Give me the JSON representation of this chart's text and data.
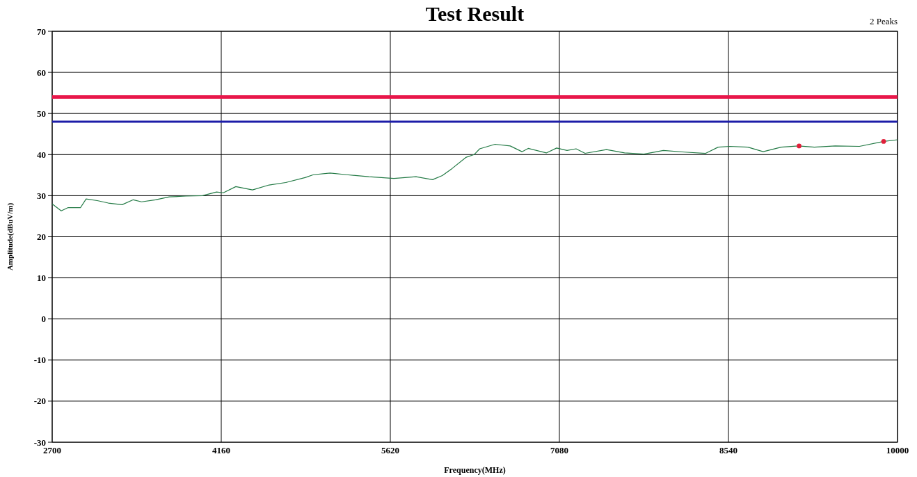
{
  "chart_data": {
    "type": "line",
    "title": "Test Result",
    "xlabel": "Frequency(MHz)",
    "ylabel": "Amplitude(dBuV/m)",
    "annotations": [
      "2 Peaks"
    ],
    "xlim": [
      2700,
      10000
    ],
    "xticks": [
      2700,
      4160,
      5620,
      7080,
      8540,
      10000
    ],
    "ylim": [
      -30,
      70
    ],
    "yticks": [
      -30,
      -20,
      -10,
      0,
      10,
      20,
      30,
      40,
      50,
      60,
      70
    ],
    "grid": true,
    "series": [
      {
        "color": "#237a45",
        "marker": "none",
        "x": [
          2700,
          2778,
          2838,
          2945,
          2993,
          3089,
          3185,
          3304,
          3400,
          3472,
          3592,
          3711,
          3855,
          3999,
          4119,
          4178,
          4286,
          4430,
          4573,
          4717,
          4884,
          4956,
          5100,
          5243,
          5435,
          5650,
          5842,
          5985,
          6069,
          6153,
          6272,
          6344,
          6392,
          6524,
          6655,
          6757,
          6811,
          6967,
          7056,
          7146,
          7224,
          7302,
          7487,
          7643,
          7810,
          7978,
          8163,
          8343,
          8451,
          8552,
          8708,
          8840,
          8995,
          9145,
          9282,
          9462,
          9671,
          9881,
          10000
        ],
        "values": [
          28.0,
          26.3,
          27.1,
          27.1,
          29.2,
          28.8,
          28.2,
          27.8,
          29.0,
          28.5,
          29.0,
          29.7,
          29.9,
          30.0,
          30.9,
          30.7,
          32.2,
          31.4,
          32.6,
          33.2,
          34.4,
          35.1,
          35.5,
          35.1,
          34.6,
          34.2,
          34.6,
          33.9,
          34.9,
          36.6,
          39.3,
          40.0,
          41.4,
          42.5,
          42.1,
          40.7,
          41.5,
          40.4,
          41.6,
          41.0,
          41.4,
          40.3,
          41.2,
          40.4,
          40.1,
          41.0,
          40.6,
          40.3,
          41.8,
          42.0,
          41.8,
          40.7,
          41.8,
          42.1,
          41.8,
          42.1,
          42.0,
          43.2,
          43.6
        ]
      },
      {
        "type": "scatter",
        "color": "#e0203a",
        "marker": "circle",
        "x": [
          9150,
          9880
        ],
        "values": [
          42.1,
          43.2
        ]
      }
    ],
    "ref_lines": [
      {
        "axis": "y",
        "value": 54,
        "color": "#e8174a"
      },
      {
        "axis": "y",
        "value": 48,
        "color": "#1c1ca8"
      }
    ]
  }
}
